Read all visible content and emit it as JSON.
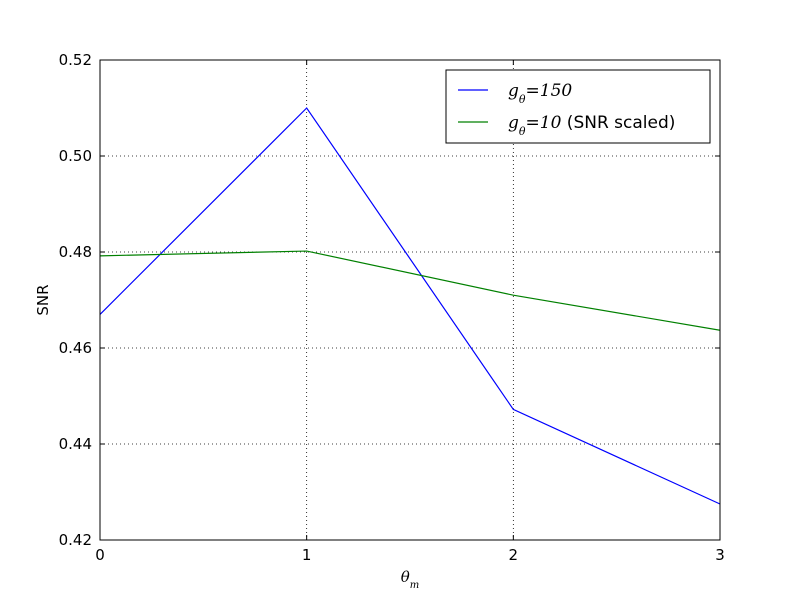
{
  "chart_data": {
    "type": "line",
    "title": "",
    "xlabel": "θ",
    "xlabel_sub": "m",
    "ylabel": "SNR",
    "xlim": [
      0,
      3
    ],
    "ylim": [
      0.42,
      0.52
    ],
    "x_ticks": [
      "0",
      "1",
      "2",
      "3"
    ],
    "y_ticks": [
      "0.42",
      "0.44",
      "0.46",
      "0.48",
      "0.50",
      "0.52"
    ],
    "x_tick_values": [
      0,
      1,
      2,
      3
    ],
    "y_tick_values": [
      0.42,
      0.44,
      0.46,
      0.48,
      0.5,
      0.52
    ],
    "grid": true,
    "legend_position": "top-right",
    "x": [
      0,
      1,
      2,
      3
    ],
    "series": [
      {
        "name": "g",
        "name_sub": "θ",
        "name_suffix": "=150",
        "name_extra": "",
        "color": "#0000ff",
        "values": [
          0.467,
          0.51,
          0.4472,
          0.4275
        ]
      },
      {
        "name": "g",
        "name_sub": "θ",
        "name_suffix": "=10",
        "name_extra": " (SNR scaled)",
        "color": "#008000",
        "values": [
          0.4792,
          0.4802,
          0.471,
          0.4637
        ]
      }
    ]
  }
}
